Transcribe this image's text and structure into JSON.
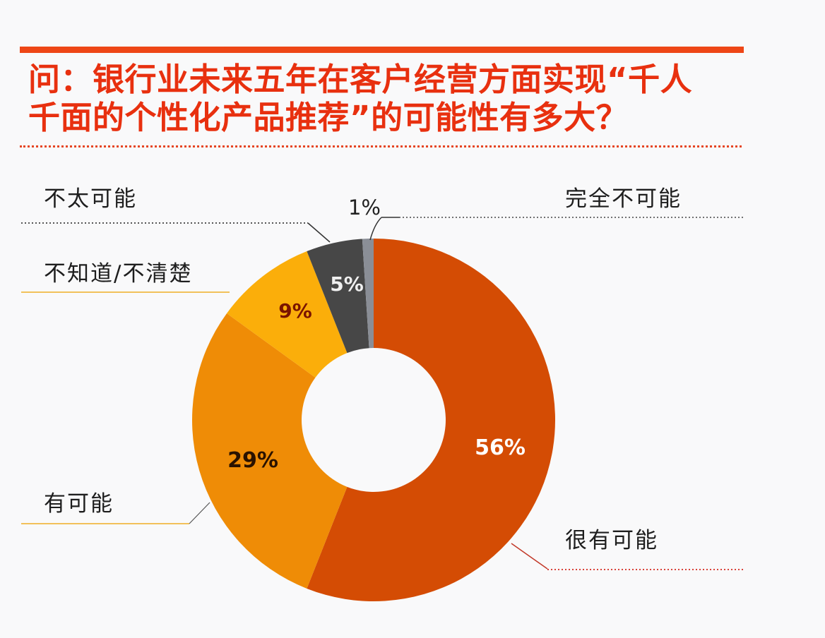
{
  "header": {
    "title_line1": "问：银行业未来五年在客户经营方面实现“千人",
    "title_line2": "千面的个性化产品推荐”的可能性有多大？"
  },
  "legend_labels": {
    "unlikely": "不太可能",
    "dont_know": "不知道/不清楚",
    "likely": "有可能",
    "very_likely": "很有可能",
    "impossible": "完全不可能"
  },
  "data_labels": {
    "very_likely": "56%",
    "likely": "29%",
    "dont_know": "9%",
    "unlikely": "5%",
    "impossible": "1%"
  },
  "colors": {
    "very_likely": "#d44c04",
    "likely": "#ef8c06",
    "dont_know": "#fbae0a",
    "unlikely": "#474747",
    "impossible": "#8a8e96",
    "title": "#e8300f",
    "accent_bar": "#ee4616"
  },
  "chart_data": {
    "type": "pie",
    "variant": "donut",
    "title": "问：银行业未来五年在客户经营方面实现“千人千面的个性化产品推荐”的可能性有多大？",
    "categories": [
      "很有可能",
      "有可能",
      "不知道/不清楚",
      "不太可能",
      "完全不可能"
    ],
    "values": [
      56,
      29,
      9,
      5,
      1
    ],
    "unit": "%",
    "start_angle": "12 o'clock, clockwise",
    "legend_position": "callout labels around chart"
  }
}
